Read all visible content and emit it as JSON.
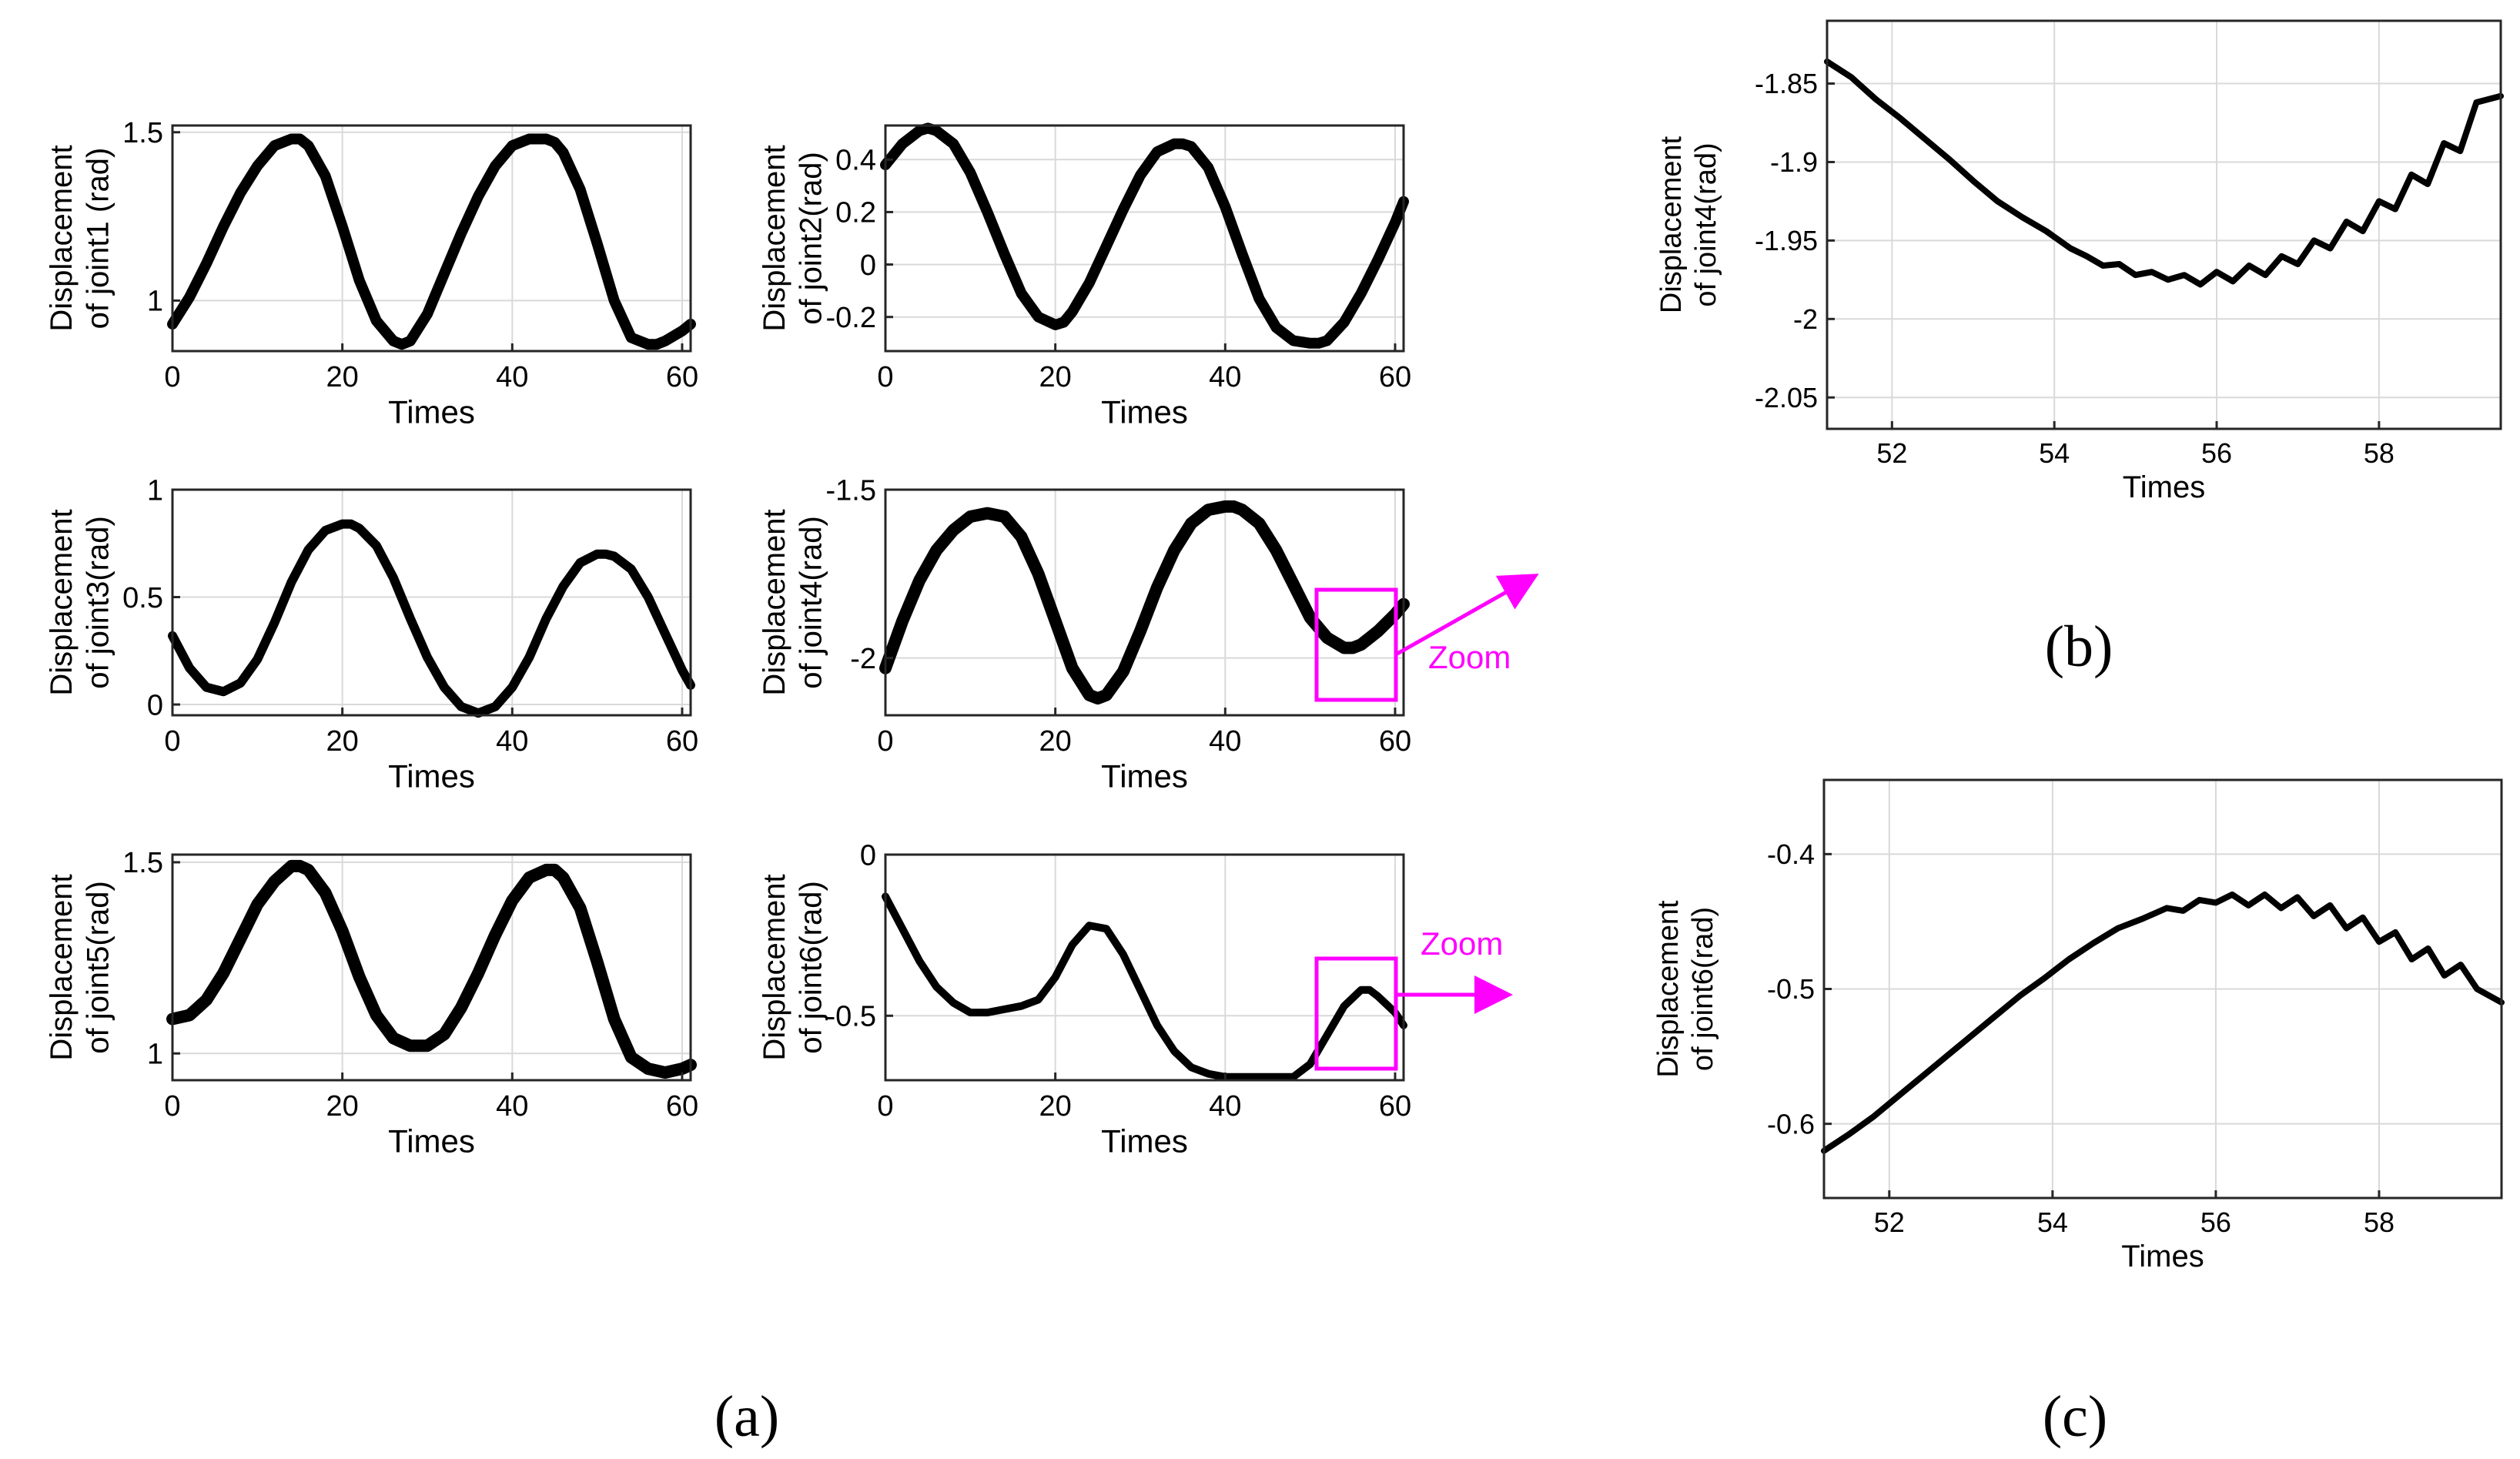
{
  "figure_labels": {
    "a": "(a)",
    "b": "(b)",
    "c": "(c)"
  },
  "annotations": {
    "zoom_label": "Zoom",
    "color": "#ff00ff"
  },
  "colors": {
    "line": "#000000",
    "grid": "#d9d9d9",
    "axis": "#262626"
  },
  "chart_data": [
    {
      "id": "j1",
      "type": "line",
      "xlabel": "Times",
      "ylabel": [
        "Displacement",
        "of joint1 (rad)"
      ],
      "xlim": [
        0,
        61
      ],
      "ylim": [
        0.85,
        1.52
      ],
      "xticks": [
        0,
        20,
        40,
        60
      ],
      "xtick_labels": [
        "0",
        "20",
        "40",
        "60"
      ],
      "yticks": [
        1,
        1.5
      ],
      "ytick_labels": [
        "1",
        "1.5"
      ],
      "line_weight": "thick",
      "x": [
        0,
        2,
        4,
        6,
        8,
        10,
        12,
        14,
        15,
        16,
        18,
        20,
        22,
        24,
        26,
        27,
        28,
        30,
        32,
        34,
        36,
        38,
        40,
        42,
        44,
        45,
        46,
        48,
        50,
        52,
        54,
        56,
        57,
        58,
        60,
        61
      ],
      "y": [
        0.93,
        1.01,
        1.11,
        1.22,
        1.32,
        1.4,
        1.46,
        1.48,
        1.48,
        1.46,
        1.37,
        1.22,
        1.06,
        0.94,
        0.88,
        0.87,
        0.88,
        0.96,
        1.08,
        1.2,
        1.31,
        1.4,
        1.46,
        1.48,
        1.48,
        1.47,
        1.44,
        1.33,
        1.17,
        1.0,
        0.89,
        0.87,
        0.87,
        0.88,
        0.91,
        0.93
      ]
    },
    {
      "id": "j2",
      "type": "line",
      "xlabel": "Times",
      "ylabel": [
        "Displacement",
        "of joint2(rad)"
      ],
      "xlim": [
        0,
        61
      ],
      "ylim": [
        -0.33,
        0.53
      ],
      "xticks": [
        0,
        20,
        40,
        60
      ],
      "xtick_labels": [
        "0",
        "20",
        "40",
        "60"
      ],
      "yticks": [
        -0.2,
        0,
        0.2,
        0.4
      ],
      "ytick_labels": [
        "-0.2",
        "0",
        "0.2",
        "0.4"
      ],
      "line_weight": "thick",
      "x": [
        0,
        2,
        4,
        5,
        6,
        8,
        10,
        12,
        14,
        16,
        18,
        20,
        21,
        22,
        24,
        26,
        28,
        30,
        32,
        34,
        35,
        36,
        38,
        40,
        42,
        44,
        46,
        48,
        50,
        51,
        52,
        54,
        56,
        58,
        60,
        61
      ],
      "y": [
        0.38,
        0.46,
        0.51,
        0.52,
        0.51,
        0.46,
        0.35,
        0.2,
        0.04,
        -0.11,
        -0.2,
        -0.23,
        -0.22,
        -0.18,
        -0.07,
        0.07,
        0.21,
        0.34,
        0.43,
        0.46,
        0.46,
        0.45,
        0.37,
        0.22,
        0.04,
        -0.13,
        -0.24,
        -0.29,
        -0.3,
        -0.3,
        -0.29,
        -0.22,
        -0.11,
        0.02,
        0.16,
        0.24
      ]
    },
    {
      "id": "j3",
      "type": "line",
      "xlabel": "Times",
      "ylabel": [
        "Displacement",
        "of joint3(rad)"
      ],
      "xlim": [
        0,
        61
      ],
      "ylim": [
        -0.05,
        1.0
      ],
      "xticks": [
        0,
        20,
        40,
        60
      ],
      "xtick_labels": [
        "0",
        "20",
        "40",
        "60"
      ],
      "yticks": [
        0,
        0.5,
        1
      ],
      "ytick_labels": [
        "0",
        "0.5",
        "1"
      ],
      "line_weight": "thick",
      "x": [
        0,
        2,
        4,
        6,
        8,
        10,
        12,
        14,
        16,
        18,
        20,
        21,
        22,
        24,
        26,
        28,
        30,
        32,
        34,
        36,
        38,
        40,
        42,
        44,
        46,
        48,
        50,
        51,
        52,
        54,
        56,
        58,
        60,
        61
      ],
      "y": [
        0.32,
        0.17,
        0.08,
        0.06,
        0.1,
        0.21,
        0.38,
        0.57,
        0.72,
        0.81,
        0.84,
        0.84,
        0.82,
        0.74,
        0.59,
        0.4,
        0.22,
        0.08,
        -0.01,
        -0.04,
        -0.01,
        0.08,
        0.22,
        0.4,
        0.55,
        0.66,
        0.7,
        0.7,
        0.69,
        0.63,
        0.5,
        0.33,
        0.16,
        0.09
      ]
    },
    {
      "id": "j4",
      "type": "line",
      "xlabel": "Times",
      "ylabel": [
        "Displacement",
        "of joint4(rad)"
      ],
      "xlim": [
        0,
        61
      ],
      "ylim": [
        -2.17,
        -1.5
      ],
      "xticks": [
        0,
        20,
        40,
        60
      ],
      "xtick_labels": [
        "0",
        "20",
        "40",
        "60"
      ],
      "yticks": [
        -2,
        -1.5
      ],
      "ytick_labels": [
        "-2",
        "-1.5"
      ],
      "line_weight": "thick",
      "x": [
        0,
        2,
        4,
        6,
        8,
        10,
        12,
        14,
        16,
        18,
        20,
        22,
        24,
        25,
        26,
        28,
        30,
        32,
        34,
        36,
        38,
        40,
        41,
        42,
        44,
        46,
        48,
        50,
        52,
        54,
        55,
        56,
        58,
        60,
        61
      ],
      "y": [
        -2.03,
        -1.89,
        -1.77,
        -1.68,
        -1.62,
        -1.58,
        -1.57,
        -1.58,
        -1.64,
        -1.75,
        -1.89,
        -2.03,
        -2.11,
        -2.12,
        -2.11,
        -2.04,
        -1.92,
        -1.79,
        -1.68,
        -1.6,
        -1.56,
        -1.55,
        -1.55,
        -1.56,
        -1.6,
        -1.68,
        -1.78,
        -1.88,
        -1.94,
        -1.97,
        -1.97,
        -1.96,
        -1.92,
        -1.87,
        -1.84
      ]
    },
    {
      "id": "j5",
      "type": "line",
      "xlabel": "Times",
      "ylabel": [
        "Displacement",
        "of joint5(rad)"
      ],
      "xlim": [
        0,
        61
      ],
      "ylim": [
        0.93,
        1.52
      ],
      "xticks": [
        0,
        20,
        40,
        60
      ],
      "xtick_labels": [
        "0",
        "20",
        "40",
        "60"
      ],
      "yticks": [
        1,
        1.5
      ],
      "ytick_labels": [
        "1",
        "1.5"
      ],
      "line_weight": "thick",
      "x": [
        0,
        2,
        4,
        6,
        8,
        10,
        12,
        14,
        15,
        16,
        18,
        20,
        22,
        24,
        26,
        28,
        30,
        32,
        34,
        36,
        38,
        40,
        42,
        44,
        45,
        46,
        48,
        50,
        52,
        54,
        56,
        58,
        60,
        61
      ],
      "y": [
        1.09,
        1.1,
        1.14,
        1.21,
        1.3,
        1.39,
        1.45,
        1.49,
        1.49,
        1.48,
        1.42,
        1.32,
        1.2,
        1.1,
        1.04,
        1.02,
        1.02,
        1.05,
        1.12,
        1.21,
        1.31,
        1.4,
        1.46,
        1.48,
        1.48,
        1.46,
        1.38,
        1.24,
        1.09,
        0.99,
        0.96,
        0.95,
        0.96,
        0.97
      ]
    },
    {
      "id": "j6",
      "type": "line",
      "xlabel": "Times",
      "ylabel": [
        "Displacement",
        "of joint6(rad)"
      ],
      "xlim": [
        0,
        61
      ],
      "ylim": [
        -0.7,
        0.0
      ],
      "xticks": [
        0,
        20,
        40,
        60
      ],
      "xtick_labels": [
        "0",
        "20",
        "40",
        "60"
      ],
      "yticks": [
        -0.5,
        0
      ],
      "ytick_labels": [
        "-0.5",
        "0"
      ],
      "line_weight": "medium",
      "x": [
        0,
        2,
        4,
        6,
        8,
        10,
        12,
        14,
        16,
        18,
        20,
        22,
        24,
        26,
        28,
        30,
        32,
        34,
        36,
        38,
        40,
        42,
        44,
        46,
        48,
        50,
        52,
        54,
        56,
        57,
        58,
        60,
        61
      ],
      "y": [
        -0.13,
        -0.23,
        -0.33,
        -0.41,
        -0.46,
        -0.49,
        -0.49,
        -0.48,
        -0.47,
        -0.45,
        -0.38,
        -0.28,
        -0.22,
        -0.23,
        -0.31,
        -0.42,
        -0.53,
        -0.61,
        -0.66,
        -0.68,
        -0.69,
        -0.69,
        -0.69,
        -0.69,
        -0.69,
        -0.65,
        -0.56,
        -0.47,
        -0.42,
        -0.42,
        -0.44,
        -0.49,
        -0.53
      ]
    },
    {
      "id": "zoom4",
      "type": "line",
      "xlabel": "Times",
      "ylabel": [
        "Displacement",
        "of joint4(rad)"
      ],
      "xlim": [
        51.2,
        59.5
      ],
      "ylim": [
        -2.07,
        -1.81
      ],
      "xticks": [
        52,
        54,
        56,
        58
      ],
      "xtick_labels": [
        "52",
        "54",
        "56",
        "58"
      ],
      "yticks": [
        -2.05,
        -2,
        -1.95,
        -1.9,
        -1.85
      ],
      "ytick_labels": [
        "-2.05",
        "-2",
        "-1.95",
        "-1.9",
        "-1.85"
      ],
      "line_weight": "thin",
      "x": [
        51.2,
        51.5,
        51.8,
        52.1,
        52.4,
        52.7,
        53.0,
        53.3,
        53.6,
        53.9,
        54.2,
        54.4,
        54.6,
        54.8,
        55.0,
        55.2,
        55.4,
        55.6,
        55.8,
        56.0,
        56.2,
        56.4,
        56.6,
        56.8,
        57.0,
        57.2,
        57.4,
        57.6,
        57.8,
        58.0,
        58.2,
        58.4,
        58.6,
        58.8,
        59.0,
        59.2,
        59.5
      ],
      "y": [
        -1.836,
        -1.846,
        -1.86,
        -1.872,
        -1.885,
        -1.898,
        -1.912,
        -1.925,
        -1.935,
        -1.944,
        -1.955,
        -1.96,
        -1.966,
        -1.965,
        -1.972,
        -1.97,
        -1.975,
        -1.972,
        -1.978,
        -1.97,
        -1.976,
        -1.966,
        -1.972,
        -1.96,
        -1.965,
        -1.95,
        -1.955,
        -1.938,
        -1.944,
        -1.925,
        -1.93,
        -1.908,
        -1.914,
        -1.888,
        -1.893,
        -1.862,
        -1.858
      ]
    },
    {
      "id": "zoom6",
      "type": "line",
      "xlabel": "Times",
      "ylabel": [
        "Displacement",
        "of joint6(rad)"
      ],
      "xlim": [
        51.2,
        59.5
      ],
      "ylim": [
        -0.655,
        -0.345
      ],
      "xticks": [
        52,
        54,
        56,
        58
      ],
      "xtick_labels": [
        "52",
        "54",
        "56",
        "58"
      ],
      "yticks": [
        -0.6,
        -0.5,
        -0.4
      ],
      "ytick_labels": [
        "-0.6",
        "-0.5",
        "-0.4"
      ],
      "line_weight": "thin",
      "x": [
        51.2,
        51.5,
        51.8,
        52.1,
        52.4,
        52.7,
        53.0,
        53.3,
        53.6,
        53.9,
        54.2,
        54.5,
        54.8,
        55.1,
        55.4,
        55.6,
        55.8,
        56.0,
        56.2,
        56.4,
        56.6,
        56.8,
        57.0,
        57.2,
        57.4,
        57.6,
        57.8,
        58.0,
        58.2,
        58.4,
        58.6,
        58.8,
        59.0,
        59.2,
        59.5
      ],
      "y": [
        -0.62,
        -0.608,
        -0.595,
        -0.58,
        -0.565,
        -0.55,
        -0.535,
        -0.52,
        -0.505,
        -0.492,
        -0.478,
        -0.466,
        -0.455,
        -0.448,
        -0.44,
        -0.442,
        -0.434,
        -0.436,
        -0.43,
        -0.438,
        -0.43,
        -0.44,
        -0.432,
        -0.446,
        -0.438,
        -0.455,
        -0.447,
        -0.465,
        -0.458,
        -0.478,
        -0.47,
        -0.49,
        -0.482,
        -0.5,
        -0.51
      ]
    }
  ]
}
